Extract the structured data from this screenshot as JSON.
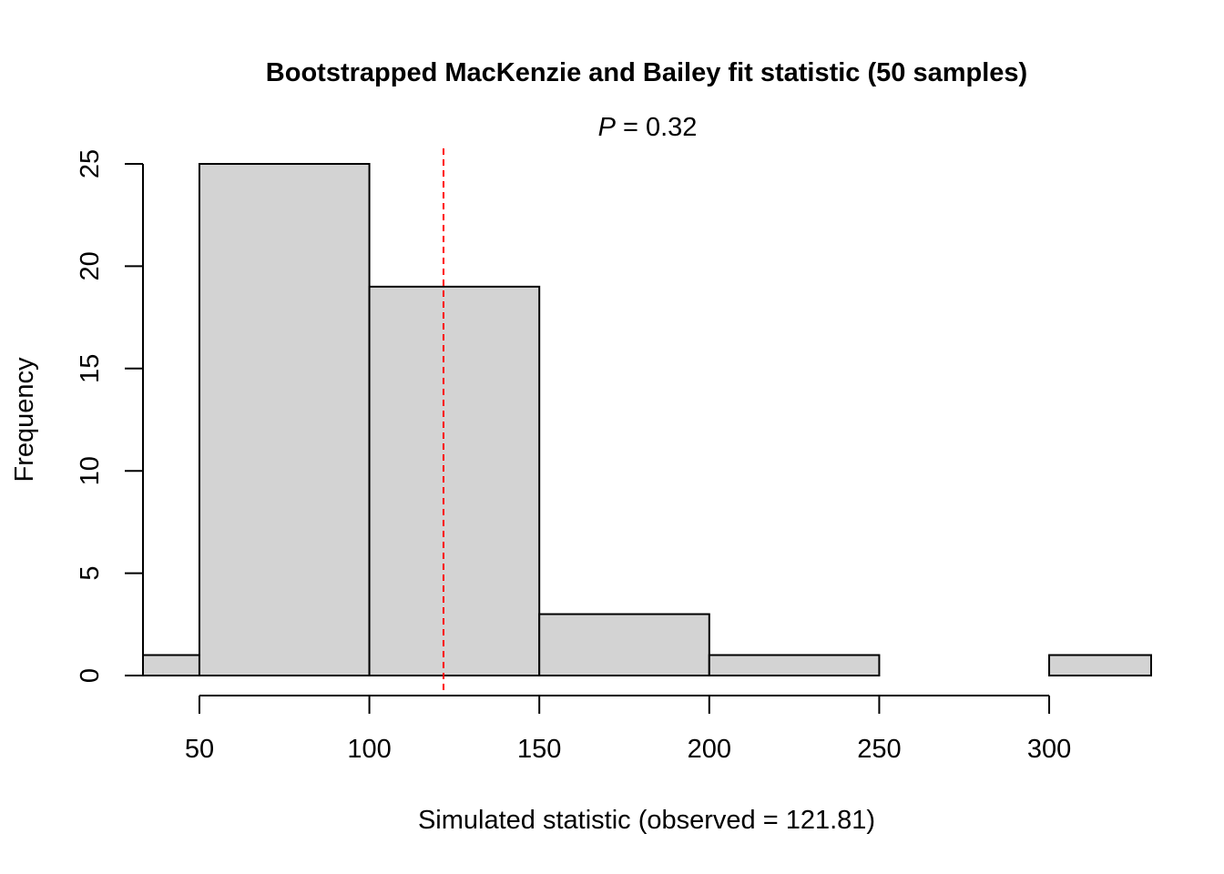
{
  "chart_data": {
    "type": "bar",
    "subtype": "histogram",
    "title": "Bootstrapped MacKenzie and Bailey fit statistic (50 samples)",
    "subtitle": {
      "p_label": "P",
      "equals_text": " = 0.32",
      "p_value": 0.32
    },
    "xlabel": "Simulated statistic (observed = 121.81)",
    "ylabel": "Frequency",
    "xlim": [
      33.4,
      330
    ],
    "ylim": [
      0,
      25
    ],
    "x_ticks": [
      {
        "value": 50,
        "label": "50"
      },
      {
        "value": 100,
        "label": "100"
      },
      {
        "value": 150,
        "label": "150"
      },
      {
        "value": 200,
        "label": "200"
      },
      {
        "value": 250,
        "label": "250"
      },
      {
        "value": 300,
        "label": "300"
      }
    ],
    "y_ticks": [
      {
        "value": 0,
        "label": "0"
      },
      {
        "value": 5,
        "label": "5"
      },
      {
        "value": 10,
        "label": "10"
      },
      {
        "value": 15,
        "label": "15"
      },
      {
        "value": 20,
        "label": "20"
      },
      {
        "value": 25,
        "label": "25"
      }
    ],
    "bins": [
      {
        "x0": 33.4,
        "x1": 50,
        "count": 1
      },
      {
        "x0": 50,
        "x1": 100,
        "count": 25
      },
      {
        "x0": 100,
        "x1": 150,
        "count": 19
      },
      {
        "x0": 150,
        "x1": 200,
        "count": 3
      },
      {
        "x0": 200,
        "x1": 250,
        "count": 1
      },
      {
        "x0": 250,
        "x1": 300,
        "count": 0
      },
      {
        "x0": 300,
        "x1": 330,
        "count": 1
      }
    ],
    "observed": 121.81,
    "bar_fill": "#d3d3d3",
    "bar_stroke": "#000000",
    "observed_line_color": "#ff0000",
    "grid": false
  }
}
